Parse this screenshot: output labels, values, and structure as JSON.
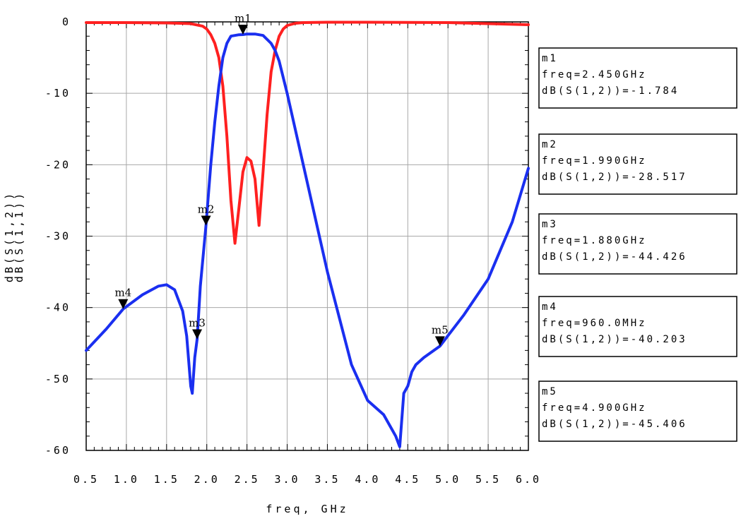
{
  "chart_data": {
    "type": "line",
    "xlabel": "freq, GHz",
    "ylabel_parts": [
      "dB(S(1,1))",
      "dB(S(1,2))"
    ],
    "xlim": [
      0.5,
      6.0
    ],
    "ylim": [
      -60,
      0
    ],
    "x_ticks": [
      "0.5",
      "1.0",
      "1.5",
      "2.0",
      "2.5",
      "3.0",
      "3.5",
      "4.0",
      "4.5",
      "5.0",
      "5.5",
      "6.0"
    ],
    "y_ticks": [
      "0",
      "-10",
      "-20",
      "-30",
      "-40",
      "-50",
      "-60"
    ],
    "y_tick_values": [
      0,
      -10,
      -20,
      -30,
      -40,
      -50,
      -60
    ],
    "grid": true,
    "series": [
      {
        "name": "dB(S(1,1))",
        "color": "#ff2020",
        "x": [
          0.5,
          1.0,
          1.5,
          1.8,
          1.95,
          2.0,
          2.05,
          2.1,
          2.15,
          2.2,
          2.25,
          2.3,
          2.35,
          2.4,
          2.45,
          2.5,
          2.55,
          2.6,
          2.65,
          2.7,
          2.75,
          2.8,
          2.85,
          2.9,
          2.95,
          3.0,
          3.1,
          3.2,
          3.5,
          4.0,
          5.0,
          6.0
        ],
        "y": [
          -0.1,
          -0.1,
          -0.15,
          -0.25,
          -0.6,
          -1.0,
          -1.8,
          -3.0,
          -5.0,
          -9.0,
          -16.0,
          -25.0,
          -31.0,
          -26.0,
          -21.0,
          -19.0,
          -19.5,
          -22.0,
          -28.5,
          -21.0,
          -13.0,
          -7.0,
          -4.0,
          -2.0,
          -1.0,
          -0.5,
          -0.2,
          -0.1,
          -0.05,
          -0.05,
          -0.1,
          -0.4
        ]
      },
      {
        "name": "dB(S(1,2))",
        "color": "#1a2ff0",
        "x": [
          0.5,
          0.75,
          0.96,
          1.2,
          1.4,
          1.5,
          1.6,
          1.7,
          1.75,
          1.8,
          1.82,
          1.85,
          1.88,
          1.92,
          1.99,
          2.05,
          2.1,
          2.15,
          2.2,
          2.25,
          2.3,
          2.4,
          2.45,
          2.5,
          2.6,
          2.7,
          2.8,
          2.85,
          2.9,
          3.0,
          3.2,
          3.5,
          3.8,
          4.0,
          4.1,
          4.2,
          4.3,
          4.35,
          4.4,
          4.45,
          4.5,
          4.55,
          4.6,
          4.7,
          4.9,
          5.2,
          5.5,
          5.8,
          6.0
        ],
        "y": [
          -46.0,
          -43.0,
          -40.2,
          -38.2,
          -37.0,
          -36.8,
          -37.5,
          -40.5,
          -44.0,
          -51.0,
          -52.0,
          -47.0,
          -44.4,
          -37.0,
          -28.5,
          -20.0,
          -14.0,
          -9.0,
          -5.0,
          -3.0,
          -2.0,
          -1.8,
          -1.784,
          -1.7,
          -1.7,
          -1.9,
          -3.0,
          -4.0,
          -5.5,
          -10.0,
          -20.0,
          -35.0,
          -48.0,
          -53.0,
          -54.0,
          -55.0,
          -57.0,
          -58.0,
          -59.5,
          -52.0,
          -51.0,
          -49.0,
          -48.0,
          -47.0,
          -45.4,
          -41.0,
          -36.0,
          -28.0,
          -20.5
        ]
      }
    ],
    "markers": [
      {
        "id": "m1",
        "x": 2.45,
        "y": -1.784,
        "label_x_offset": 0
      },
      {
        "id": "m2",
        "x": 1.99,
        "y": -28.517
      },
      {
        "id": "m3",
        "x": 1.88,
        "y": -44.426
      },
      {
        "id": "m4",
        "x": 0.96,
        "y": -40.203
      },
      {
        "id": "m5",
        "x": 4.9,
        "y": -45.406
      }
    ],
    "readouts": [
      {
        "name": "m1",
        "freq": "freq=2.450GHz",
        "value": "dB(S(1,2))=-1.784"
      },
      {
        "name": "m2",
        "freq": "freq=1.990GHz",
        "value": "dB(S(1,2))=-28.517"
      },
      {
        "name": "m3",
        "freq": "freq=1.880GHz",
        "value": "dB(S(1,2))=-44.426"
      },
      {
        "name": "m4",
        "freq": "freq=960.0MHz",
        "value": "dB(S(1,2))=-40.203"
      },
      {
        "name": "m5",
        "freq": "freq=4.900GHz",
        "value": "dB(S(1,2))=-45.406"
      }
    ]
  }
}
